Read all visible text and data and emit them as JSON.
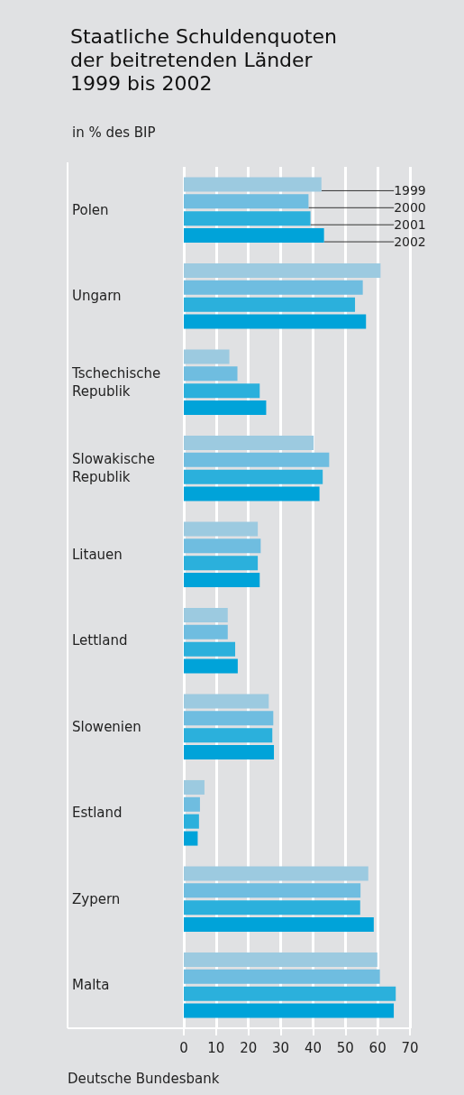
{
  "chart_data": {
    "type": "bar",
    "orientation": "horizontal",
    "title": "Staatliche Schuldenquoten der beitretenden Länder 1999 bis 2002",
    "subtitle": "in % des BIP",
    "categories": [
      "Polen",
      "Ungarn",
      "Tschechische Republik",
      "Slowakische Republik",
      "Litauen",
      "Lettland",
      "Slowenien",
      "Estland",
      "Zypern",
      "Malta"
    ],
    "series": [
      {
        "name": "1999",
        "color": "#9ccae0",
        "values": [
          42.6,
          60.9,
          14.1,
          40.2,
          22.9,
          13.6,
          26.3,
          6.4,
          57.1,
          59.9
        ]
      },
      {
        "name": "2000",
        "color": "#6fbde0",
        "values": [
          38.6,
          55.4,
          16.6,
          45.0,
          23.8,
          13.6,
          27.7,
          5.0,
          54.7,
          60.7
        ]
      },
      {
        "name": "2001",
        "color": "#2bb0dc",
        "values": [
          39.2,
          53.0,
          23.5,
          43.0,
          22.9,
          15.9,
          27.4,
          4.7,
          54.6,
          65.6
        ]
      },
      {
        "name": "2002",
        "color": "#00a3d9",
        "values": [
          43.4,
          56.4,
          25.5,
          42.0,
          23.5,
          16.7,
          27.9,
          4.3,
          58.8,
          65.0
        ]
      }
    ],
    "xlim": [
      0,
      70
    ],
    "xticks": [
      0,
      10,
      20,
      30,
      40,
      50,
      60,
      70
    ],
    "grid": "x",
    "annotations": [
      "Deutsche Bundesbank"
    ]
  }
}
